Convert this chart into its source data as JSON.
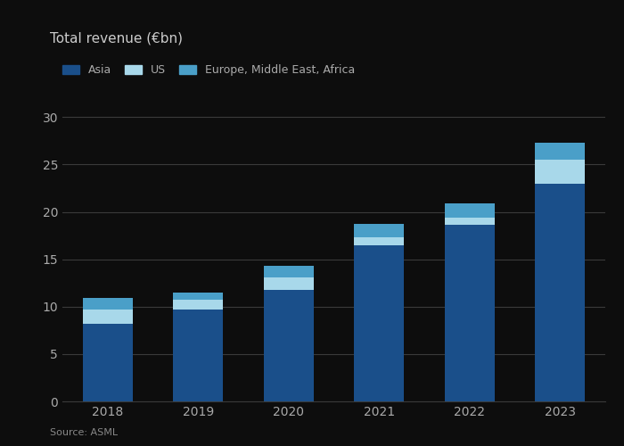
{
  "years": [
    "2018",
    "2019",
    "2020",
    "2021",
    "2022",
    "2023"
  ],
  "asia": [
    8.2,
    9.7,
    11.8,
    16.5,
    18.6,
    23.0
  ],
  "us": [
    1.5,
    1.0,
    1.3,
    0.8,
    0.8,
    2.5
  ],
  "emea": [
    1.2,
    0.8,
    1.2,
    1.4,
    1.5,
    1.8
  ],
  "color_asia": "#1a4f8a",
  "color_us": "#a8d8ea",
  "color_emea": "#4a9fc8",
  "title": "Total revenue (€bn)",
  "legend_labels": [
    "Asia",
    "US",
    "Europe, Middle East, Africa"
  ],
  "source": "Source: ASML",
  "ylim": [
    0,
    32
  ],
  "yticks": [
    0,
    5,
    10,
    15,
    20,
    25,
    30
  ],
  "bar_width": 0.55,
  "background_color": "#0d0d0d",
  "plot_bg_color": "#0d0d0d",
  "grid_color": "#3a3a3a",
  "tick_label_color": "#aaaaaa",
  "title_color": "#cccccc",
  "source_color": "#888888",
  "legend_text_color": "#aaaaaa"
}
